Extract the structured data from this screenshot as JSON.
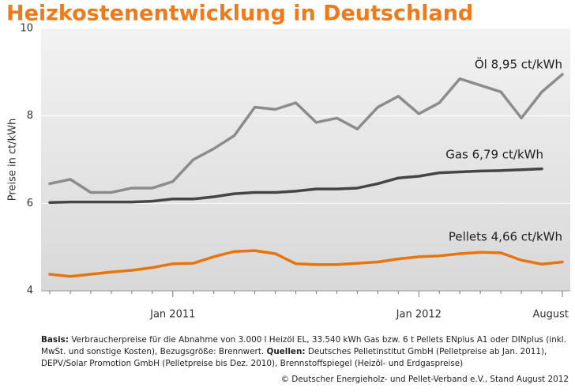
{
  "chart_data": {
    "type": "line",
    "title": "Heizkostenentwicklung in Deutschland",
    "y_label": "Preise in ct/kWh",
    "categories": [
      null,
      null,
      null,
      null,
      null,
      null,
      "Jan 2011",
      null,
      null,
      null,
      null,
      null,
      null,
      null,
      null,
      null,
      null,
      null,
      "Jan 2012",
      null,
      null,
      null,
      null,
      null,
      null,
      "August"
    ],
    "series": [
      {
        "name": "Öl",
        "color": "#8c8c8c",
        "values": [
          6.45,
          6.55,
          6.25,
          6.25,
          6.35,
          6.35,
          6.5,
          7.0,
          7.25,
          7.55,
          8.2,
          8.15,
          8.3,
          7.85,
          7.95,
          7.7,
          8.2,
          8.45,
          8.05,
          8.3,
          8.85,
          8.7,
          8.55,
          7.95,
          8.55,
          8.95
        ]
      },
      {
        "name": "Gas",
        "color": "#454545",
        "values": [
          6.02,
          6.03,
          6.03,
          6.03,
          6.03,
          6.05,
          6.1,
          6.1,
          6.15,
          6.22,
          6.25,
          6.25,
          6.28,
          6.33,
          6.33,
          6.35,
          6.45,
          6.58,
          6.62,
          6.7,
          6.72,
          6.74,
          6.75,
          6.77,
          6.79,
          null
        ]
      },
      {
        "name": "Pellets",
        "color": "#e8740c",
        "values": [
          4.38,
          4.33,
          4.38,
          4.43,
          4.47,
          4.53,
          4.62,
          4.63,
          4.78,
          4.9,
          4.92,
          4.85,
          4.62,
          4.6,
          4.6,
          4.63,
          4.66,
          4.73,
          4.78,
          4.8,
          4.85,
          4.88,
          4.87,
          4.7,
          4.61,
          4.66
        ]
      }
    ],
    "annotations": [
      "Öl 8,95 ct/kWh",
      "Gas 6,79 ct/kWh",
      "Pellets 4,66 ct/kWh"
    ],
    "ylim": [
      4,
      10
    ],
    "yticks": [
      4,
      6,
      8,
      10
    ],
    "grid": true,
    "footnote": {
      "basis_label": "Basis:",
      "basis_text": "Verbraucherpreise für die Abnahme von 3.000 l Heizöl EL, 33.540 kWh Gas bzw. 6 t Pellets ENplus A1 oder DINplus (inkl. MwSt. und sonstige Kosten), Bezugsgröße: Brennwert.",
      "sources_label": "Quellen:",
      "sources_text": "Deutsches Pelletinstitut GmbH (Pelletpreise ab Jan. 2011), DEPV/Solar Promotion GmbH (Pelletpreise bis Dez. 2010), Brennstoffspiegel (Heizöl- und Erdgaspreise)",
      "copyright": "© Deutscher Energieholz- und Pellet-Verband e.V., Stand August 2012"
    }
  }
}
